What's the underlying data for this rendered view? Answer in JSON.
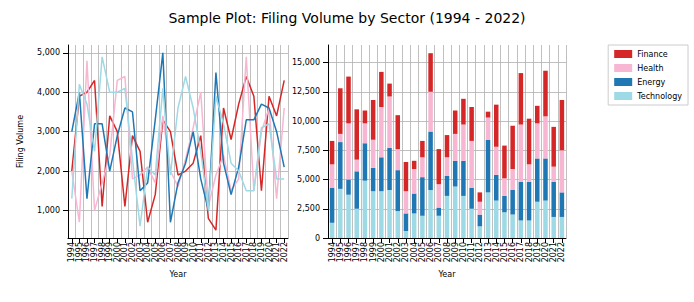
{
  "title": "Sample Plot: Filing Volume by Sector (1994 - 2022)",
  "chart_data": [
    {
      "type": "line",
      "xlabel": "Year",
      "ylabel": "Filing Volume",
      "grid": true,
      "categories": [
        "1994",
        "1995",
        "1996",
        "1997",
        "1998",
        "1999",
        "2000",
        "2001",
        "2002",
        "2003",
        "2004",
        "2005",
        "2006",
        "2007",
        "2008",
        "2009",
        "2010",
        "2011",
        "2012",
        "2013",
        "2014",
        "2015",
        "2016",
        "2017",
        "2018",
        "2019",
        "2020",
        "2021",
        "2022"
      ],
      "ylim": [
        300,
        5200
      ],
      "yticks": [
        {
          "value": 1000,
          "label": "1,000"
        },
        {
          "value": 2000,
          "label": "2,000"
        },
        {
          "value": 3000,
          "label": "3,000"
        },
        {
          "value": 4000,
          "label": "4,000"
        },
        {
          "value": 5000,
          "label": "5,000"
        }
      ],
      "series": [
        {
          "name": "Finance",
          "color": "#d62728",
          "values": [
            2000,
            3900,
            4000,
            4300,
            1100,
            3400,
            3000,
            1100,
            2900,
            2500,
            700,
            1400,
            3300,
            3000,
            1900,
            2000,
            2200,
            2900,
            800,
            500,
            3600,
            2800,
            3700,
            4400,
            3900,
            1500,
            3900,
            3400,
            4300
          ]
        },
        {
          "name": "Health",
          "color": "#f7b6d2",
          "values": [
            2000,
            700,
            4800,
            1000,
            1700,
            2400,
            4300,
            4400,
            1800,
            1900,
            2100,
            1700,
            3400,
            2000,
            1600,
            2300,
            3100,
            4000,
            1100,
            1900,
            2400,
            1500,
            1800,
            4900,
            1500,
            3000,
            3600,
            1300,
            3600
          ]
        },
        {
          "name": "Energy",
          "color": "#1f77b4",
          "values": [
            3000,
            4000,
            1300,
            3200,
            3200,
            2000,
            2900,
            3600,
            3500,
            1500,
            1700,
            3300,
            5000,
            700,
            1700,
            2200,
            3000,
            1800,
            1000,
            4500,
            2200,
            1400,
            2100,
            3300,
            3300,
            3700,
            3600,
            3000,
            2100
          ]
        },
        {
          "name": "Technology",
          "color": "#9edae5",
          "values": [
            1300,
            4200,
            3700,
            2500,
            4900,
            4000,
            4000,
            4100,
            2300,
            600,
            2100,
            1900,
            4100,
            1900,
            3600,
            4400,
            3600,
            2500,
            1000,
            3900,
            3200,
            2200,
            2000,
            1500,
            1500,
            3100,
            3200,
            1800,
            1800
          ]
        }
      ]
    },
    {
      "type": "bar",
      "stacked": true,
      "xlabel": "Year",
      "grid": true,
      "legend": "right",
      "categories": [
        "1994",
        "1995",
        "1996",
        "1997",
        "1998",
        "1999",
        "2000",
        "2001",
        "2002",
        "2003",
        "2004",
        "2005",
        "2006",
        "2007",
        "2008",
        "2009",
        "2010",
        "2011",
        "2012",
        "2013",
        "2014",
        "2015",
        "2016",
        "2017",
        "2018",
        "2019",
        "2020",
        "2021",
        "2022"
      ],
      "ylim": [
        0,
        16500
      ],
      "yticks": [
        0,
        {
          "value": 2500,
          "label": "2,500"
        },
        {
          "value": 5000,
          "label": "5,000"
        },
        {
          "value": 7500,
          "label": "7,500"
        },
        {
          "value": 10000,
          "label": "10,000"
        },
        {
          "value": 12500,
          "label": "12,500"
        },
        {
          "value": 15000,
          "label": "15,000"
        }
      ],
      "series": [
        {
          "name": "Finance",
          "color": "#d62728",
          "values": [
            2000,
            3900,
            4000,
            4300,
            1100,
            3400,
            3000,
            1100,
            2900,
            2500,
            700,
            1400,
            3300,
            3000,
            1900,
            2000,
            2200,
            2900,
            800,
            500,
            3600,
            2800,
            3700,
            4400,
            3900,
            1500,
            3900,
            3400,
            4300
          ]
        },
        {
          "name": "Health",
          "color": "#f7b6d2",
          "values": [
            2000,
            700,
            4800,
            1000,
            1700,
            2400,
            4300,
            4400,
            1800,
            1900,
            2100,
            1700,
            3400,
            2000,
            1600,
            2300,
            3100,
            4000,
            1100,
            1900,
            2400,
            1500,
            1800,
            4900,
            1500,
            3000,
            3600,
            1300,
            3600
          ]
        },
        {
          "name": "Energy",
          "color": "#1f77b4",
          "values": [
            3000,
            4000,
            1300,
            3200,
            3200,
            2000,
            2900,
            3600,
            3500,
            1500,
            1700,
            3300,
            5000,
            700,
            1700,
            2200,
            3000,
            1800,
            1000,
            4500,
            2200,
            1400,
            2100,
            3300,
            3300,
            3700,
            3600,
            3000,
            2100
          ]
        },
        {
          "name": "Technology",
          "color": "#9edae5",
          "values": [
            1300,
            4200,
            3700,
            2500,
            4900,
            4000,
            4000,
            4100,
            2300,
            600,
            2100,
            1900,
            4100,
            1900,
            3600,
            4400,
            3600,
            2500,
            1000,
            3900,
            3200,
            2200,
            2000,
            1500,
            1500,
            3100,
            3200,
            1800,
            1800
          ]
        }
      ]
    }
  ]
}
